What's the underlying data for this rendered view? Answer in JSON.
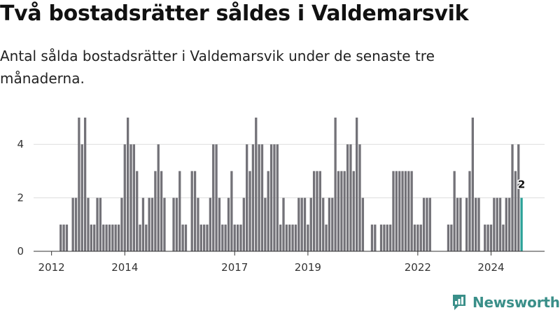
{
  "title": "Två bostadsrätter såldes i Valdemarsvik",
  "subtitle": "Antal sålda bostadsrätter i Valdemarsvik under de senaste tre månaderna.",
  "brand": {
    "name": "Newsworthy",
    "color": "#3a8f89",
    "icon": "newsworthy-logo-icon"
  },
  "colors": {
    "bar": "#737278",
    "highlight": "#2aa198",
    "grid": "#dddddd",
    "axis": "#333333"
  },
  "chart_data": {
    "type": "bar",
    "title": "Två bostadsrätter såldes i Valdemarsvik",
    "xlabel": "",
    "ylabel": "",
    "ylim": [
      0,
      5
    ],
    "y_ticks": [
      0,
      2,
      4
    ],
    "x_ticks": [
      "2012",
      "2014",
      "2017",
      "2019",
      "2022",
      "2024"
    ],
    "grid": true,
    "x_start": "2012-01",
    "x_end": "2024-08",
    "values": [
      0,
      0,
      0,
      1,
      1,
      1,
      0,
      2,
      2,
      5,
      4,
      5,
      2,
      1,
      1,
      2,
      2,
      1,
      1,
      1,
      1,
      1,
      1,
      2,
      4,
      5,
      4,
      4,
      3,
      1,
      2,
      1,
      2,
      2,
      3,
      4,
      3,
      2,
      0,
      0,
      2,
      2,
      3,
      1,
      1,
      0,
      3,
      3,
      2,
      1,
      1,
      1,
      2,
      4,
      4,
      2,
      1,
      1,
      2,
      3,
      1,
      1,
      1,
      2,
      4,
      3,
      4,
      5,
      4,
      4,
      2,
      3,
      4,
      4,
      4,
      1,
      2,
      1,
      1,
      1,
      1,
      2,
      2,
      2,
      1,
      2,
      3,
      3,
      3,
      2,
      1,
      2,
      2,
      5,
      3,
      3,
      3,
      4,
      4,
      3,
      5,
      4,
      2,
      0,
      0,
      1,
      1,
      0,
      1,
      1,
      1,
      1,
      3,
      3,
      3,
      3,
      3,
      3,
      3,
      1,
      1,
      1,
      2,
      2,
      2,
      0,
      0,
      0,
      0,
      0,
      1,
      1,
      3,
      2,
      2,
      0,
      2,
      3,
      5,
      2,
      2,
      0,
      1,
      1,
      1,
      2,
      2,
      2,
      1,
      2,
      2,
      4,
      3,
      4,
      2
    ],
    "highlight_last": true,
    "data_label": "2"
  }
}
